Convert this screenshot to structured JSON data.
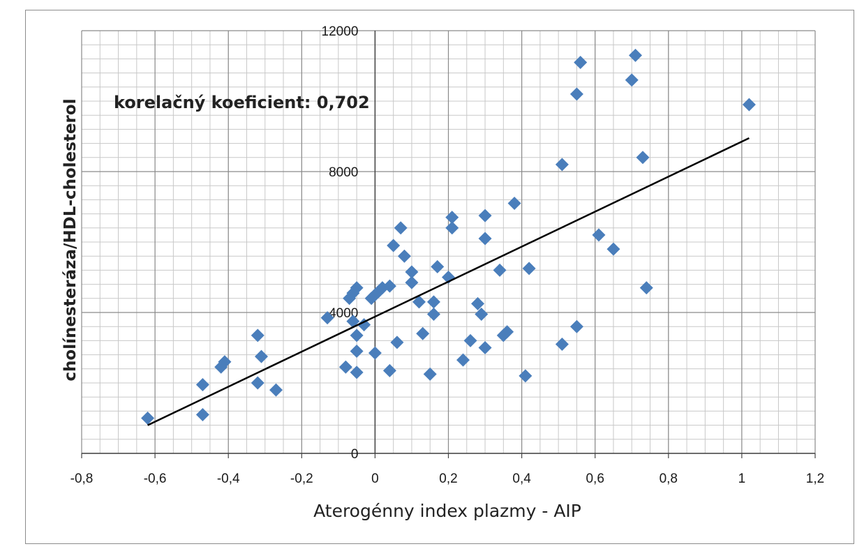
{
  "chart_data": {
    "type": "scatter",
    "xlabel": "Aterogénny index plazmy - AIP",
    "ylabel": "cholínesteráza/HDL-cholesterol",
    "annotation": "korelačný koeficient: 0,702",
    "xlim": [
      -0.8,
      1.2
    ],
    "ylim": [
      0,
      12000
    ],
    "x_ticks": [
      "-0,8",
      "-0,6",
      "-0,4",
      "-0,2",
      "0",
      "0,2",
      "0,4",
      "0,6",
      "0,8",
      "1",
      "1,2"
    ],
    "y_ticks": [
      "0",
      "4000",
      "8000",
      "12000"
    ],
    "grid": true,
    "marker_color": "#4a7ebb",
    "trendline": {
      "x": [
        -0.62,
        1.02
      ],
      "y": [
        800,
        8950
      ],
      "color": "#000000"
    },
    "series": [
      {
        "points": [
          [
            -0.62,
            1000
          ],
          [
            -0.47,
            1100
          ],
          [
            -0.47,
            1950
          ],
          [
            -0.42,
            2450
          ],
          [
            -0.41,
            2600
          ],
          [
            -0.32,
            3350
          ],
          [
            -0.31,
            2750
          ],
          [
            -0.32,
            2000
          ],
          [
            -0.27,
            1800
          ],
          [
            -0.13,
            3850
          ],
          [
            -0.08,
            2450
          ],
          [
            -0.07,
            4400
          ],
          [
            -0.06,
            4550
          ],
          [
            -0.05,
            4700
          ],
          [
            -0.06,
            3750
          ],
          [
            -0.05,
            3350
          ],
          [
            -0.05,
            2900
          ],
          [
            -0.05,
            2300
          ],
          [
            -0.03,
            3650
          ],
          [
            -0.01,
            4400
          ],
          [
            0.0,
            4500
          ],
          [
            0.01,
            4600
          ],
          [
            0.02,
            4700
          ],
          [
            0.04,
            4750
          ],
          [
            0.0,
            2850
          ],
          [
            0.04,
            2350
          ],
          [
            0.05,
            5900
          ],
          [
            0.06,
            3150
          ],
          [
            0.07,
            6400
          ],
          [
            0.08,
            5600
          ],
          [
            0.1,
            5150
          ],
          [
            0.1,
            4850
          ],
          [
            0.12,
            4300
          ],
          [
            0.13,
            3400
          ],
          [
            0.15,
            2250
          ],
          [
            0.16,
            4300
          ],
          [
            0.16,
            3950
          ],
          [
            0.17,
            5300
          ],
          [
            0.2,
            5000
          ],
          [
            0.21,
            6700
          ],
          [
            0.21,
            6400
          ],
          [
            0.24,
            2650
          ],
          [
            0.26,
            3200
          ],
          [
            0.28,
            4250
          ],
          [
            0.29,
            3950
          ],
          [
            0.3,
            3000
          ],
          [
            0.3,
            6100
          ],
          [
            0.3,
            6750
          ],
          [
            0.34,
            5200
          ],
          [
            0.35,
            3350
          ],
          [
            0.36,
            3450
          ],
          [
            0.38,
            7100
          ],
          [
            0.41,
            2200
          ],
          [
            0.42,
            5250
          ],
          [
            0.51,
            3100
          ],
          [
            0.51,
            8200
          ],
          [
            0.55,
            3600
          ],
          [
            0.55,
            10200
          ],
          [
            0.56,
            11100
          ],
          [
            0.61,
            6200
          ],
          [
            0.65,
            5800
          ],
          [
            0.7,
            10600
          ],
          [
            0.71,
            11300
          ],
          [
            0.73,
            8400
          ],
          [
            0.74,
            4700
          ],
          [
            1.02,
            9900
          ]
        ]
      }
    ]
  }
}
